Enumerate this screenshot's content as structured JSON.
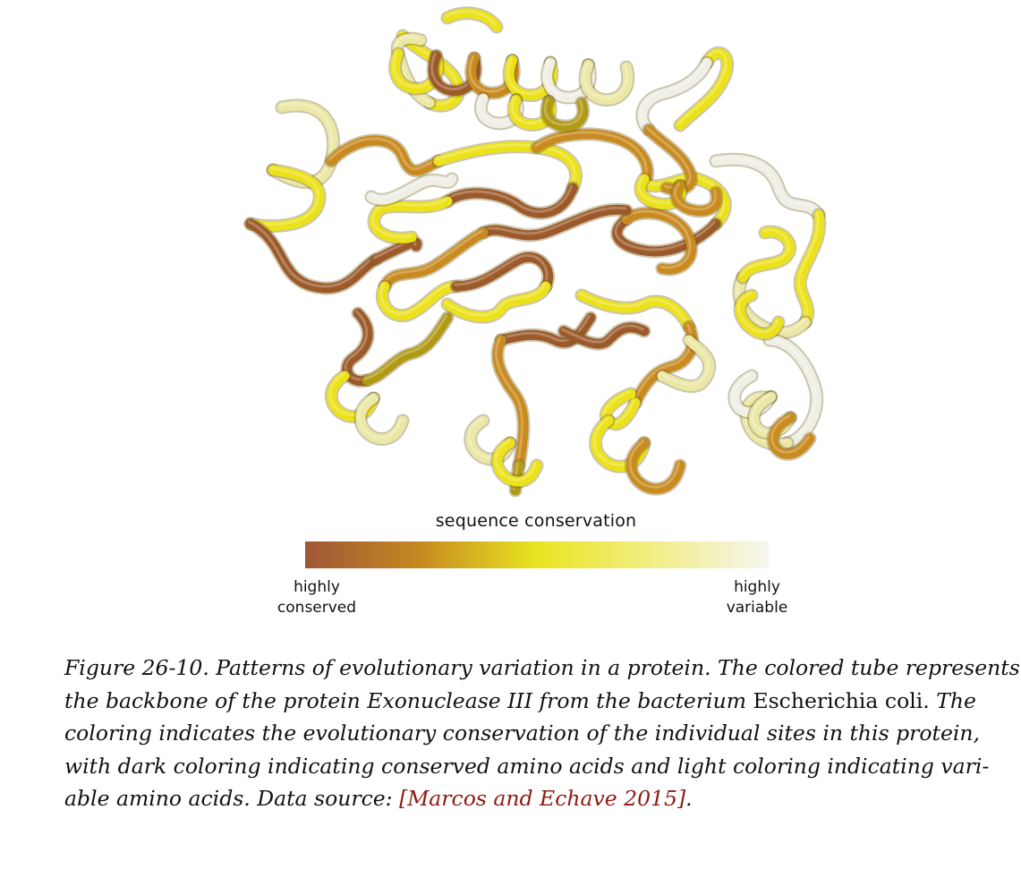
{
  "figure": {
    "protein_name": "Exonuclease III",
    "tube_colors": {
      "dark": "#9c5a2a",
      "orange": "#c98a1e",
      "olive": "#b09a14",
      "yellow": "#ece21a",
      "pale": "#ebe8a6",
      "white": "#efefe6"
    }
  },
  "legend": {
    "title": "sequence conservation",
    "left_label": [
      "highly",
      "conserved"
    ],
    "right_label": [
      "highly",
      "variable"
    ],
    "gradient": [
      "#9e5637",
      "#c68a20",
      "#e9e420",
      "#f2ee86",
      "#f5f5f1"
    ]
  },
  "caption": {
    "lines": [
      [
        {
          "t": "Figure 26-10. Patterns of evolutionary variation in a protein. The colored tube represents",
          "s": "it"
        }
      ],
      [
        {
          "t": "the backbone of the protein Exonuclease III from the bacterium ",
          "s": "it"
        },
        {
          "t": "Escherichia coli",
          "s": "roman"
        },
        {
          "t": ". The",
          "s": "it"
        }
      ],
      [
        {
          "t": "coloring indicates the evolutionary conservation of the individual sites in this protein,",
          "s": "it"
        }
      ],
      [
        {
          "t": "with dark coloring indicating conserved amino acids and light coloring indicating vari-",
          "s": "it"
        }
      ],
      [
        {
          "t": "able amino acids. Data source: ",
          "s": "it"
        },
        {
          "t": "[Marcos and Echave 2015]",
          "s": "cite"
        },
        {
          "t": ".",
          "s": "it"
        }
      ]
    ]
  }
}
